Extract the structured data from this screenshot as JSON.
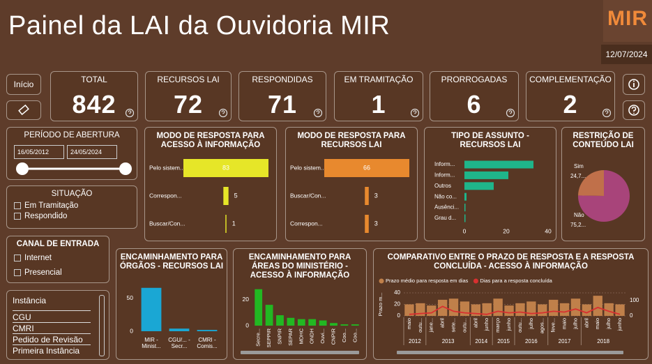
{
  "header": {
    "title": "Painel da LAI da Ouvidoria MIR",
    "logo": "MIR",
    "date": "12/07/2024"
  },
  "nav": {
    "home": "Início"
  },
  "kpis": [
    {
      "label": "TOTAL",
      "value": 842
    },
    {
      "label": "RECURSOS LAI",
      "value": 72
    },
    {
      "label": "RESPONDIDAS",
      "value": 71
    },
    {
      "label": "EM TRAMITAÇÃO",
      "value": 1
    },
    {
      "label": "PRORROGADAS",
      "value": 6
    },
    {
      "label": "COMPLEMENTAÇÃO",
      "value": 2
    }
  ],
  "filters": {
    "period": {
      "title": "PERÍODO DE ABERTURA",
      "start": "16/05/2012",
      "end": "24/05/2024"
    },
    "situation": {
      "title": "SITUAÇÃO",
      "options": [
        "Em Tramitação",
        "Respondido"
      ]
    },
    "channel": {
      "title": "CANAL DE ENTRADA",
      "options": [
        "Internet",
        "Presencial"
      ]
    },
    "instance": {
      "title": "Instância",
      "options": [
        "CGU",
        "CMRI",
        "Pedido de Revisão",
        "Primeira Instância"
      ]
    }
  },
  "chart_data": [
    {
      "type": "funnel",
      "title": "MODO DE RESPOSTA PARA ACESSO À INFORMAÇÃO",
      "categories": [
        "Pelo sistem...",
        "Correspon...",
        "Buscar/Con..."
      ],
      "values": [
        83,
        5,
        1
      ],
      "color": "#e6e628"
    },
    {
      "type": "funnel",
      "title": "MODO DE RESPOSTA PARA RECURSOS LAI",
      "categories": [
        "Pelo sistem...",
        "Buscar/Con...",
        "Correspon..."
      ],
      "values": [
        66,
        3,
        3
      ],
      "color": "#e8892e"
    },
    {
      "type": "hbar",
      "title": "TIPO DE ASSUNTO - RECURSOS LAI",
      "categories": [
        "Inform...",
        "Inform...",
        "Outros",
        "Não co...",
        "Ausênci...",
        "Grau d..."
      ],
      "values": [
        33,
        21,
        14,
        1,
        0.5,
        0.5
      ],
      "color": "#1fb58a",
      "xlim": [
        0,
        42
      ],
      "xticks": [
        0,
        20,
        40
      ]
    },
    {
      "type": "pie",
      "title": "RESTRIÇÃO DE CONTEÚDO LAI",
      "categories": [
        "Sim",
        "Não"
      ],
      "values": [
        24.73,
        75.27
      ],
      "value_labels": [
        "24,7...",
        "75,2..."
      ],
      "colors": [
        "#c0704a",
        "#a8447a"
      ]
    },
    {
      "type": "bar",
      "title": "ENCAMINHAMENTO PARA ÓRGÃOS - RECURSOS LAI",
      "categories": [
        "MIR - Minist...",
        "CGU/... - Secr...",
        "CMRI - Comis..."
      ],
      "values": [
        66,
        4,
        2
      ],
      "color": "#1aa7d4",
      "ylim": [
        0,
        70
      ],
      "yticks": [
        0,
        50
      ]
    },
    {
      "type": "bar",
      "title": "ENCAMINHAMENTO PARA ÁREAS DO MINISTÉRIO - ACESSO À INFORMAÇÃO",
      "categories": [
        "Secre...",
        "SEPPIR",
        "SNPIR",
        "SEPAR",
        "MDHC",
        "ONDH",
        "Ouvi...",
        "CNPIR",
        "Coo...",
        "Coo..."
      ],
      "values": [
        28,
        16,
        8,
        6,
        5,
        5,
        4,
        2,
        1,
        1
      ],
      "color": "#22b822",
      "ylim": [
        0,
        30
      ],
      "yticks": [
        0,
        20
      ]
    },
    {
      "type": "combo",
      "title": "COMPARATIVO ENTRE O PRAZO DE RESPOSTA E A RESPOSTA CONCLUÍDA - ACESSO À INFORMAÇÃO",
      "ylabel": "Prazo m...",
      "categories": [
        "maio",
        "outu...",
        "jane...",
        "abril",
        "sete...",
        "outu...",
        "abril",
        "junho",
        "março",
        "junho",
        "outu...",
        "julho",
        "agos...",
        "feve...",
        "maio",
        "julho",
        "abril",
        "maio",
        "julho",
        "junho"
      ],
      "year_labels": [
        "2012",
        null,
        "2013",
        null,
        null,
        null,
        "2014",
        null,
        "2015",
        null,
        "2016",
        null,
        null,
        "2017",
        null,
        null,
        "2018",
        null,
        null,
        null
      ],
      "ylim": [
        0,
        40
      ],
      "yticks": [
        0,
        20,
        40
      ],
      "y2lim": [
        0,
        150
      ],
      "y2ticks": [
        0,
        100
      ],
      "series": [
        {
          "name": "Prazo médio para resposta em dias",
          "color": "#c0804a",
          "values": [
            20,
            22,
            18,
            28,
            30,
            25,
            20,
            22,
            30,
            18,
            22,
            25,
            20,
            28,
            22,
            30,
            20,
            35,
            22,
            20
          ]
        },
        {
          "name": "Dias para a resposta concluída",
          "color": "#d83030",
          "axis": "y2",
          "values": [
            10,
            15,
            20,
            62,
            30,
            20,
            15,
            10,
            30,
            20,
            25,
            15,
            20,
            30,
            25,
            45,
            20,
            55,
            30,
            10
          ]
        }
      ]
    }
  ]
}
